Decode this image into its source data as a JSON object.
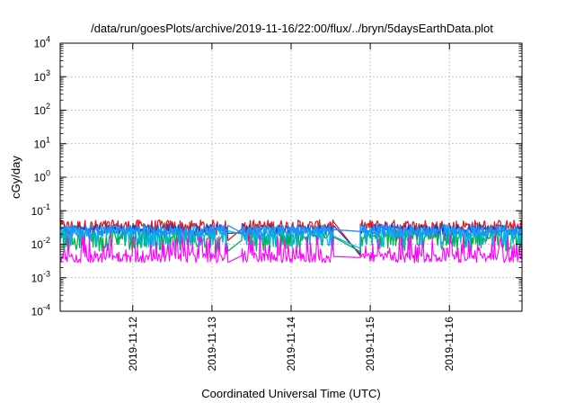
{
  "chart_data": {
    "type": "line",
    "title": "/data/run/goesPlots/archive/2019-11-16/22:00/flux/../bryn/5daysEarthData.plot",
    "xlabel": "Coordinated Universal Time (UTC)",
    "ylabel": "cGy/day",
    "y_scale": "log",
    "ylim": [
      0.0001,
      10000
    ],
    "y_ticks": [
      {
        "base": "10",
        "exp": "-4",
        "value": 0.0001
      },
      {
        "base": "10",
        "exp": "-3",
        "value": 0.001
      },
      {
        "base": "10",
        "exp": "-2",
        "value": 0.01
      },
      {
        "base": "10",
        "exp": "-1",
        "value": 0.1
      },
      {
        "base": "10",
        "exp": "0",
        "value": 1
      },
      {
        "base": "10",
        "exp": "1",
        "value": 10
      },
      {
        "base": "10",
        "exp": "2",
        "value": 100
      },
      {
        "base": "10",
        "exp": "3",
        "value": 1000
      },
      {
        "base": "10",
        "exp": "4",
        "value": 10000
      }
    ],
    "xlim": [
      "2019-11-11 02:00",
      "2019-11-16 22:00"
    ],
    "x_ticks": [
      "2019-11-12",
      "2019-11-13",
      "2019-11-14",
      "2019-11-15",
      "2019-11-16"
    ],
    "grid": true,
    "gaps": [
      {
        "start": "2019-11-13 05:00",
        "end": "2019-11-13 09:00"
      },
      {
        "start": "2019-11-14 13:00",
        "end": "2019-11-14 21:00"
      }
    ],
    "series": [
      {
        "color": "#e41a1c",
        "baseline": 0.032,
        "low": 0.012,
        "high": 0.065,
        "dip_prob": 0.08,
        "gap_levels": [
          0.028,
          0.0045
        ]
      },
      {
        "color": "#1f3fbf",
        "baseline": 0.026,
        "low": 0.014,
        "high": 0.048,
        "dip_prob": 0.06,
        "gap_levels": [
          0.022,
          0.005
        ]
      },
      {
        "color": "#00b050",
        "baseline": 0.018,
        "low": 0.006,
        "high": 0.03,
        "dip_prob": 0.3,
        "gap_levels": [
          0.013,
          0.006
        ]
      },
      {
        "color": "#00b7eb",
        "baseline": 0.022,
        "low": 0.008,
        "high": 0.04,
        "dip_prob": 0.2,
        "gap_levels": [
          0.02,
          0.0075
        ]
      },
      {
        "color": "#ff00ff",
        "baseline": 0.0045,
        "low": 0.0028,
        "high": 0.02,
        "dip_prob": 0.0,
        "gap_levels": [
          0.0045,
          0.004
        ]
      },
      {
        "color": "#1e90ff",
        "baseline": 0.024,
        "low": 0.015,
        "high": 0.045,
        "dip_prob": 0.05,
        "gap_levels": [
          0.022,
          0.024
        ]
      }
    ]
  }
}
